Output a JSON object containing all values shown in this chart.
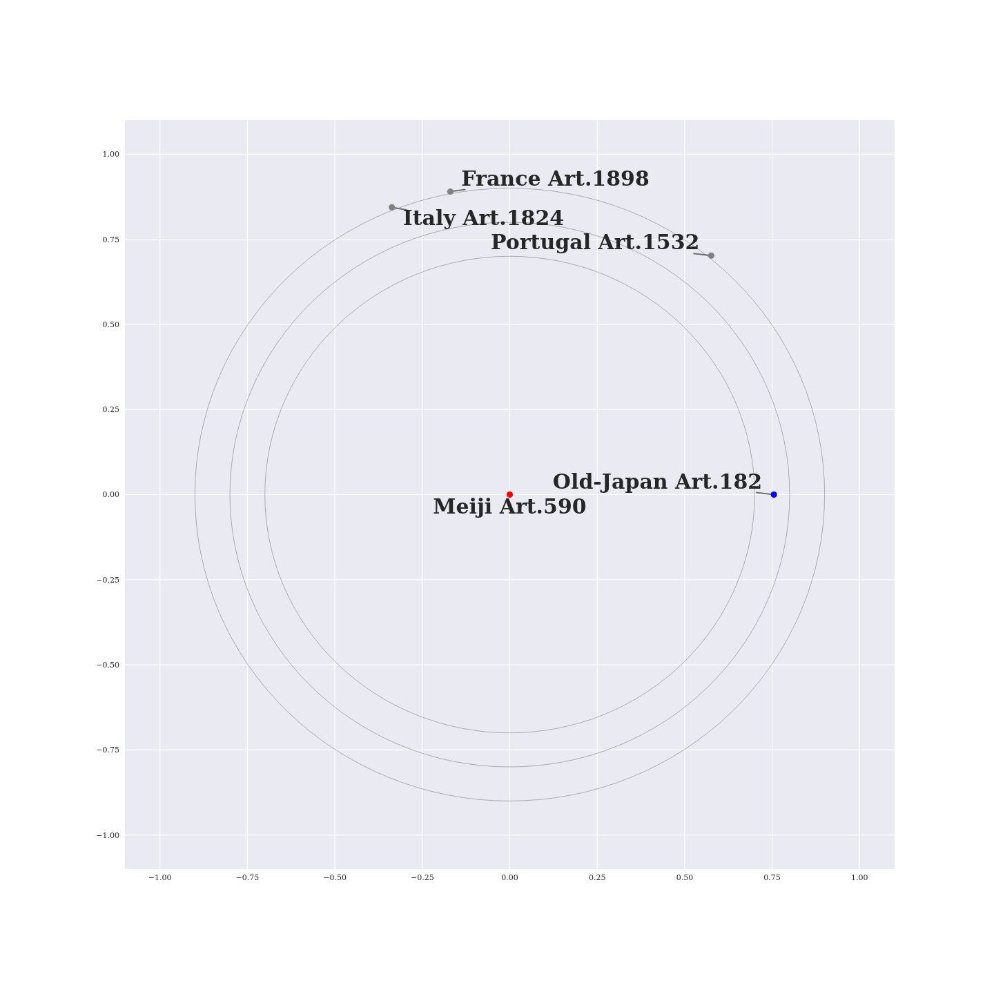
{
  "chart_data": {
    "type": "scatter",
    "xlim": [
      -1.1,
      1.1
    ],
    "ylim": [
      -1.1,
      1.1
    ],
    "xticks": [
      {
        "value": -1,
        "label": "−1.00"
      },
      {
        "value": -0.75,
        "label": "−0.75"
      },
      {
        "value": -0.5,
        "label": "−0.50"
      },
      {
        "value": -0.25,
        "label": "−0.25"
      },
      {
        "value": 0,
        "label": "0.00"
      },
      {
        "value": 0.25,
        "label": "0.25"
      },
      {
        "value": 0.5,
        "label": "0.50"
      },
      {
        "value": 0.75,
        "label": "0.75"
      },
      {
        "value": 1,
        "label": "1.00"
      }
    ],
    "yticks": [
      {
        "value": -1,
        "label": "−1.00"
      },
      {
        "value": -0.75,
        "label": "−0.75"
      },
      {
        "value": -0.5,
        "label": "−0.50"
      },
      {
        "value": -0.25,
        "label": "−0.25"
      },
      {
        "value": 0,
        "label": "0.00"
      },
      {
        "value": 0.25,
        "label": "0.25"
      },
      {
        "value": 0.5,
        "label": "0.50"
      },
      {
        "value": 0.75,
        "label": "0.75"
      },
      {
        "value": 1,
        "label": "1.00"
      }
    ],
    "grid": true,
    "marker": "circle",
    "series": [
      {
        "x": [
          0,
          0.755,
          -0.17,
          -0.337,
          0.576
        ],
        "values": [
          0,
          0,
          0.89,
          0.844,
          0.702
        ],
        "colors": [
          "#ff0000",
          "#0000ff",
          "#808080",
          "#808080",
          "#808080"
        ]
      }
    ],
    "annotations": [
      {
        "text": "Meiji Art.590",
        "x": 0,
        "y": 0
      },
      {
        "text": "Old-Japan Art.182",
        "x": 0.755,
        "y": 0
      },
      {
        "text": "France Art.1898",
        "x": -0.17,
        "y": 0.89
      },
      {
        "text": "Italy Art.1824",
        "x": -0.337,
        "y": 0.844
      },
      {
        "text": "Portugal Art.1532",
        "x": 0.576,
        "y": 0.702
      }
    ]
  }
}
